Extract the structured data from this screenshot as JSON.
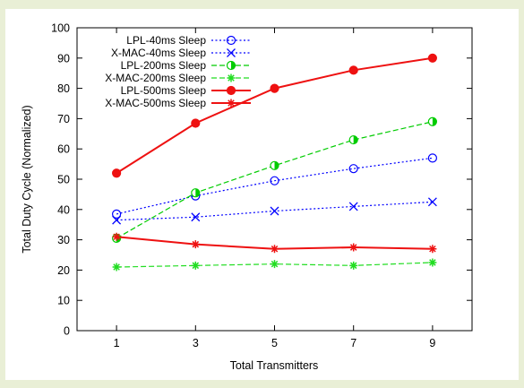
{
  "chart_data": {
    "type": "line",
    "title": "",
    "xlabel": "Total Transmitters",
    "ylabel": "Total Duty Cycle (Normalized)",
    "x": [
      1,
      3,
      5,
      7,
      9
    ],
    "xticks": [
      "1",
      "3",
      "5",
      "7",
      "9"
    ],
    "xlim": [
      0,
      10
    ],
    "ylim": [
      0,
      100
    ],
    "yticks": [
      "0",
      "10",
      "20",
      "30",
      "40",
      "50",
      "60",
      "70",
      "80",
      "90",
      "100"
    ],
    "grid": false,
    "legend_position": "top-left",
    "series": [
      {
        "name": "LPL-40ms Sleep",
        "values": [
          38.5,
          44.5,
          49.5,
          53.5,
          57
        ],
        "color": "#0000ff",
        "marker": "open-circle",
        "line": "dotted"
      },
      {
        "name": "X-MAC-40ms Sleep",
        "values": [
          36.5,
          37.5,
          39.5,
          41,
          42.5
        ],
        "color": "#0000ff",
        "marker": "x",
        "line": "dotted"
      },
      {
        "name": "LPL-200ms Sleep",
        "values": [
          30.5,
          45.5,
          54.5,
          63,
          69
        ],
        "color": "#00cc00",
        "marker": "half-filled-circle",
        "line": "dashed"
      },
      {
        "name": "X-MAC-200ms Sleep",
        "values": [
          21,
          21.5,
          22,
          21.5,
          22.5
        ],
        "color": "#22dd22",
        "marker": "asterisk",
        "line": "dashed"
      },
      {
        "name": "LPL-500ms Sleep",
        "values": [
          52,
          68.5,
          80,
          86,
          90
        ],
        "color": "#ee1111",
        "marker": "filled-circle",
        "line": "solid"
      },
      {
        "name": "X-MAC-500ms Sleep",
        "values": [
          31,
          28.5,
          27,
          27.5,
          27
        ],
        "color": "#ee1111",
        "marker": "asterisk",
        "line": "solid"
      }
    ]
  }
}
